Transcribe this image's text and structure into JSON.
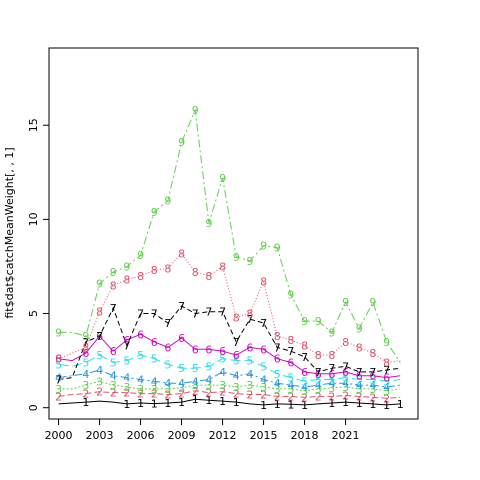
{
  "chart_data": {
    "type": "line",
    "title": "",
    "xlabel": "",
    "ylabel": "fit$dat$catchMeanWeight[, , 1]",
    "x": [
      2000,
      2001,
      2002,
      2003,
      2004,
      2005,
      2006,
      2007,
      2008,
      2009,
      2010,
      2011,
      2012,
      2013,
      2014,
      2015,
      2016,
      2017,
      2018,
      2019,
      2020,
      2021,
      2022,
      2023,
      2024,
      2025
    ],
    "x_ticks": [
      "2000",
      "2003",
      "2006",
      "2009",
      "2012",
      "2015",
      "2018",
      "2021"
    ],
    "y_ticks": [
      "0",
      "5",
      "10",
      "15"
    ],
    "xlim": [
      1999.3,
      2026.3
    ],
    "ylim": [
      -0.6,
      19.1
    ],
    "grid": false,
    "legend": "none",
    "series": [
      {
        "name": "1",
        "color": "#000000",
        "dash": "",
        "values": [
          0.2,
          0.25,
          0.3,
          0.35,
          0.3,
          0.2,
          0.25,
          0.22,
          0.25,
          0.3,
          0.45,
          0.4,
          0.35,
          0.3,
          0.2,
          0.15,
          0.2,
          0.18,
          0.15,
          0.2,
          0.25,
          0.3,
          0.25,
          0.2,
          0.15,
          0.2
        ]
      },
      {
        "name": "2",
        "color": "#DF536B",
        "dash": "6,3",
        "values": [
          0.6,
          0.7,
          0.75,
          0.85,
          0.8,
          0.8,
          0.75,
          0.75,
          0.7,
          0.75,
          0.9,
          0.8,
          0.85,
          0.75,
          0.7,
          0.7,
          0.6,
          0.6,
          0.55,
          0.6,
          0.6,
          0.65,
          0.6,
          0.55,
          0.5,
          0.55
        ]
      },
      {
        "name": "3",
        "color": "#61D04F",
        "dash": "2,2",
        "values": [
          1.0,
          1.0,
          1.2,
          1.4,
          1.2,
          1.1,
          1.0,
          1.0,
          1.0,
          1.05,
          1.2,
          1.2,
          1.2,
          1.1,
          1.2,
          1.1,
          1.0,
          1.0,
          0.9,
          1.0,
          1.05,
          1.1,
          1.0,
          1.0,
          0.9,
          1.0
        ]
      },
      {
        "name": "4",
        "color": "#2297E6",
        "dash": "8,3,2,3",
        "values": [
          1.6,
          1.7,
          1.8,
          2.0,
          1.7,
          1.6,
          1.5,
          1.4,
          1.3,
          1.3,
          1.4,
          1.5,
          1.9,
          1.7,
          1.8,
          1.5,
          1.3,
          1.2,
          1.1,
          1.2,
          1.3,
          1.3,
          1.2,
          1.2,
          1.1,
          1.2
        ]
      },
      {
        "name": "5",
        "color": "#28E2E5",
        "dash": "10,4",
        "values": [
          2.3,
          2.2,
          2.4,
          2.8,
          2.4,
          2.5,
          2.8,
          2.6,
          2.3,
          2.1,
          2.1,
          2.2,
          2.6,
          2.5,
          2.5,
          2.2,
          1.8,
          1.6,
          1.4,
          1.5,
          1.5,
          1.6,
          1.5,
          1.5,
          1.4,
          1.5
        ]
      },
      {
        "name": "6",
        "color": "#CD0BBC",
        "dash": "",
        "values": [
          2.6,
          2.5,
          2.9,
          3.8,
          3.0,
          3.6,
          3.9,
          3.5,
          3.2,
          3.7,
          3.1,
          3.1,
          3.0,
          2.8,
          3.2,
          3.1,
          2.6,
          2.4,
          1.9,
          1.8,
          1.8,
          1.9,
          1.7,
          1.7,
          1.6,
          1.7
        ]
      },
      {
        "name": "7",
        "color": "#000000",
        "dash": "5,3",
        "values": [
          1.5,
          1.6,
          3.5,
          3.8,
          5.3,
          3.3,
          5.0,
          5.0,
          4.5,
          5.4,
          5.0,
          5.1,
          5.1,
          3.5,
          4.7,
          4.5,
          3.2,
          3.0,
          2.7,
          1.9,
          2.1,
          2.2,
          1.9,
          1.9,
          2.0,
          2.1
        ]
      },
      {
        "name": "8",
        "color": "#DF536B",
        "dash": "1,2",
        "values": [
          2.6,
          2.9,
          3.2,
          5.1,
          6.5,
          6.8,
          7.0,
          7.3,
          7.4,
          8.2,
          7.2,
          7.0,
          7.5,
          4.8,
          5.0,
          6.7,
          3.8,
          3.6,
          3.3,
          2.8,
          2.8,
          3.5,
          3.2,
          2.9,
          2.4,
          2.5
        ]
      },
      {
        "name": "9",
        "color": "#61D04F",
        "dash": "8,3,2,3",
        "values": [
          4.0,
          4.0,
          3.8,
          6.6,
          7.2,
          7.5,
          8.1,
          10.4,
          11.0,
          14.1,
          15.8,
          9.8,
          12.2,
          8.0,
          7.8,
          8.6,
          8.5,
          6.0,
          4.6,
          4.6,
          4.0,
          5.6,
          4.2,
          5.6,
          3.5,
          2.4
        ]
      }
    ],
    "label_points": [
      {
        "series": "1",
        "indices": [
          2,
          5,
          6,
          7,
          8,
          9,
          10,
          11,
          12,
          13,
          15,
          16,
          17,
          18,
          20,
          21,
          22,
          23,
          24,
          25
        ]
      },
      {
        "series": "2",
        "indices": [
          0,
          2,
          3,
          4,
          5,
          6,
          7,
          8,
          9,
          10,
          11,
          12,
          13,
          14,
          15,
          16,
          17,
          18,
          19,
          20,
          21,
          22,
          23,
          24
        ]
      },
      {
        "series": "3",
        "indices": [
          0,
          2,
          3,
          4,
          5,
          6,
          7,
          8,
          9,
          10,
          11,
          12,
          13,
          14,
          15,
          16,
          17,
          18,
          19,
          20,
          21,
          22,
          23,
          24
        ]
      },
      {
        "series": "4",
        "indices": [
          0,
          2,
          3,
          4,
          5,
          6,
          7,
          8,
          9,
          10,
          11,
          12,
          13,
          14,
          15,
          16,
          17,
          18,
          19,
          20,
          21,
          22,
          23,
          24
        ]
      },
      {
        "series": "5",
        "indices": [
          0,
          2,
          3,
          4,
          5,
          6,
          7,
          8,
          9,
          10,
          11,
          12,
          13,
          14,
          15,
          16,
          17,
          18,
          19,
          20,
          21,
          22,
          23,
          24
        ]
      },
      {
        "series": "6",
        "indices": [
          0,
          2,
          3,
          4,
          5,
          6,
          7,
          8,
          9,
          10,
          11,
          12,
          13,
          14,
          15,
          16,
          17,
          18,
          19,
          20,
          21,
          22,
          23,
          24
        ]
      },
      {
        "series": "7",
        "indices": [
          0,
          2,
          3,
          4,
          5,
          6,
          7,
          8,
          9,
          10,
          11,
          12,
          13,
          14,
          15,
          16,
          17,
          18,
          19,
          20,
          21,
          22,
          23,
          24
        ]
      },
      {
        "series": "8",
        "indices": [
          0,
          2,
          3,
          4,
          5,
          6,
          7,
          8,
          9,
          10,
          11,
          12,
          13,
          14,
          15,
          16,
          17,
          18,
          19,
          20,
          21,
          22,
          23,
          24
        ]
      },
      {
        "series": "9",
        "indices": [
          0,
          2,
          3,
          4,
          5,
          6,
          7,
          8,
          9,
          10,
          11,
          12,
          13,
          14,
          15,
          16,
          17,
          18,
          19,
          20,
          21,
          22,
          23,
          24
        ]
      }
    ]
  }
}
